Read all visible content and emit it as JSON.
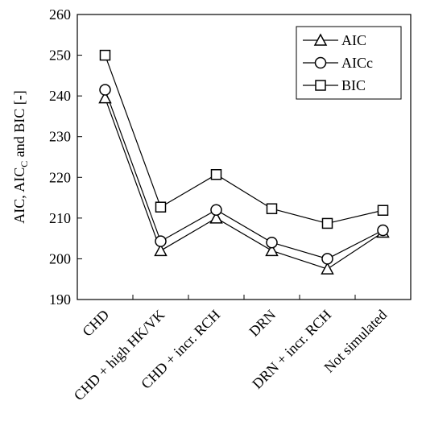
{
  "chart_data": {
    "type": "line",
    "categories": [
      "CHD",
      "CHD + high HK/VK",
      "CHD + incr. RCH",
      "DRN",
      "DRN + incr. RCH",
      "Not simulated"
    ],
    "series": [
      {
        "name": "AIC",
        "marker": "triangle",
        "values": [
          239.5,
          202.0,
          210.0,
          202.0,
          197.5,
          206.5
        ]
      },
      {
        "name": "AICc",
        "marker": "circle",
        "values": [
          241.5,
          204.3,
          212.0,
          204.0,
          200.0,
          207.0
        ]
      },
      {
        "name": "BIC",
        "marker": "square",
        "values": [
          250.0,
          212.7,
          220.7,
          212.3,
          208.7,
          211.9
        ]
      }
    ],
    "ylabel": "AIC, AIC",
    "ylabel_sub": "C",
    "ylabel_end": " and BIC [-]",
    "ylim": [
      190,
      260
    ],
    "yticks": [
      190,
      200,
      210,
      220,
      230,
      240,
      250,
      260
    ],
    "grid": false,
    "legend_position": "top-right",
    "line_color": "#000000",
    "marker_fill": "#ffffff"
  }
}
